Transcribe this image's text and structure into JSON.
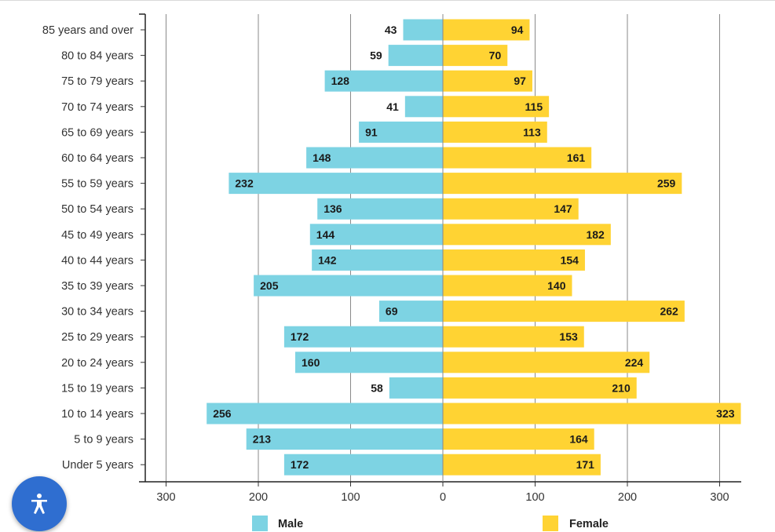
{
  "chart_data": {
    "type": "bar",
    "orientation": "horizontal-population-pyramid",
    "categories": [
      "85 years and over",
      "80 to 84 years",
      "75 to 79 years",
      "70 to 74 years",
      "65 to 69 years",
      "60 to 64 years",
      "55 to 59 years",
      "50 to 54 years",
      "45 to 49 years",
      "40 to 44 years",
      "35 to 39 years",
      "30 to 34 years",
      "25 to 29 years",
      "20 to 24 years",
      "15 to 19 years",
      "10 to 14 years",
      "5 to 9 years",
      "Under 5 years"
    ],
    "series": [
      {
        "name": "Male",
        "color": "#7dd3e3",
        "values": [
          43,
          59,
          128,
          41,
          91,
          148,
          232,
          136,
          144,
          142,
          205,
          69,
          172,
          160,
          58,
          256,
          213,
          172
        ]
      },
      {
        "name": "Female",
        "color": "#ffd333",
        "values": [
          94,
          70,
          97,
          115,
          113,
          161,
          259,
          147,
          182,
          154,
          140,
          262,
          153,
          224,
          210,
          323,
          164,
          171
        ]
      }
    ],
    "x_ticks": [
      300,
      200,
      100,
      0,
      100,
      200,
      300
    ],
    "xlim": [
      -300,
      300
    ],
    "grid": true,
    "legend_position": "bottom"
  },
  "legend": {
    "male_label": "Male",
    "female_label": "Female"
  },
  "accessibility": {
    "icon": "accessibility-person-icon"
  }
}
